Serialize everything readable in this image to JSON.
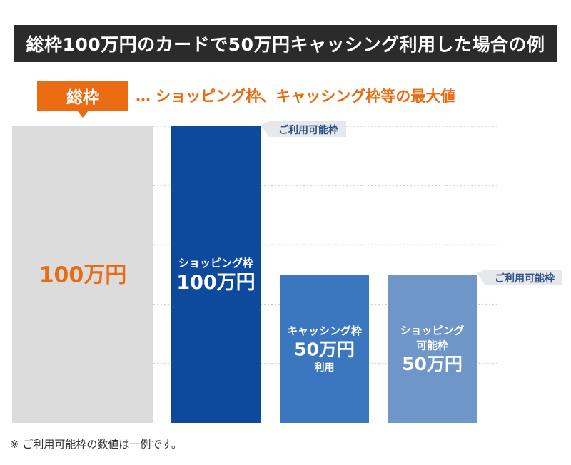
{
  "title": "総枠100万円のカードで50万円キャッシング利用した場合の例",
  "total_tag": "総枠",
  "description": "… ショッピング枠、キャッシング枠等の最大値",
  "footnote": "※ ご利用可能枠の数値は一例です。",
  "colors": {
    "header_bg": "#2b2b2b",
    "accent_orange": "#ea6b12",
    "total_bar": "#dcdcdc",
    "shopping_bar": "#0d4a9e",
    "cashing_bar": "#3a77bf",
    "shopping_available_bar": "#6f96c8",
    "callout_bg": "#e6e8eb",
    "callout_text": "#2c4f86",
    "gridline": "#cfcfcf"
  },
  "chart_data": {
    "type": "bar",
    "unit": "万円",
    "ylim": [
      0,
      100
    ],
    "grid": true,
    "bars": [
      {
        "key": "total",
        "label_lines": [
          "100万円"
        ],
        "value": 100,
        "color": "#dcdcdc",
        "text_color": "#ea6b12"
      },
      {
        "key": "shopping",
        "label_lines": [
          "ショッピング枠",
          "100万円"
        ],
        "value": 100,
        "color": "#0d4a9e",
        "text_color": "#ffffff"
      },
      {
        "key": "cashing",
        "label_lines": [
          "キャッシング枠",
          "50万円",
          "利用"
        ],
        "value": 50,
        "color": "#3a77bf",
        "text_color": "#ffffff"
      },
      {
        "key": "shopping_available",
        "label_lines": [
          "ショッピング",
          "可能枠",
          "50万円"
        ],
        "value": 50,
        "color": "#6f96c8",
        "text_color": "#ffffff"
      }
    ],
    "callouts": [
      {
        "text": "ご利用可能枠",
        "value": 100
      },
      {
        "text": "ご利用可能枠",
        "value": 50
      }
    ]
  }
}
